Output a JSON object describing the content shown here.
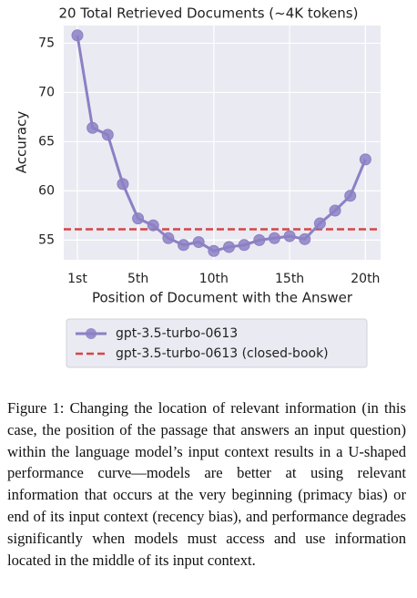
{
  "chart_data": {
    "type": "line",
    "title": "20 Total Retrieved Documents (~4K tokens)",
    "xlabel": "Position of Document with the Answer",
    "ylabel": "Accuracy",
    "x": [
      1,
      2,
      3,
      4,
      5,
      6,
      7,
      8,
      9,
      10,
      11,
      12,
      13,
      14,
      15,
      16,
      17,
      18,
      19,
      20
    ],
    "series": [
      {
        "name": "gpt-3.5-turbo-0613",
        "color": "#8c80c4",
        "values": [
          75.8,
          66.4,
          65.7,
          60.7,
          57.2,
          56.5,
          55.2,
          54.5,
          54.8,
          53.9,
          54.3,
          54.5,
          55.0,
          55.2,
          55.4,
          55.1,
          56.7,
          58.0,
          59.5,
          63.2
        ]
      }
    ],
    "reference_lines": [
      {
        "name": "gpt-3.5-turbo-0613 (closed-book)",
        "value": 56.1,
        "color": "#d64545"
      }
    ],
    "xlim": [
      0.1,
      21
    ],
    "xticks": [
      {
        "value": 1,
        "label": "1st"
      },
      {
        "value": 5,
        "label": "5th"
      },
      {
        "value": 10,
        "label": "10th"
      },
      {
        "value": 15,
        "label": "15th"
      },
      {
        "value": 20,
        "label": "20th"
      }
    ],
    "ylim": [
      53,
      76.8
    ],
    "yticks": [
      55,
      60,
      65,
      70,
      75
    ],
    "grid": true,
    "legend": "bottom"
  },
  "caption": "Figure 1: Changing the location of relevant information (in this case, the position of the passage that answers an input question) within the language model’s input context results in a U-shaped performance curve—models are better at using relevant information that occurs at the very beginning (primacy bias) or end of its input context (recency bias), and performance degrades significantly when models must access and use information located in the middle of its input context."
}
